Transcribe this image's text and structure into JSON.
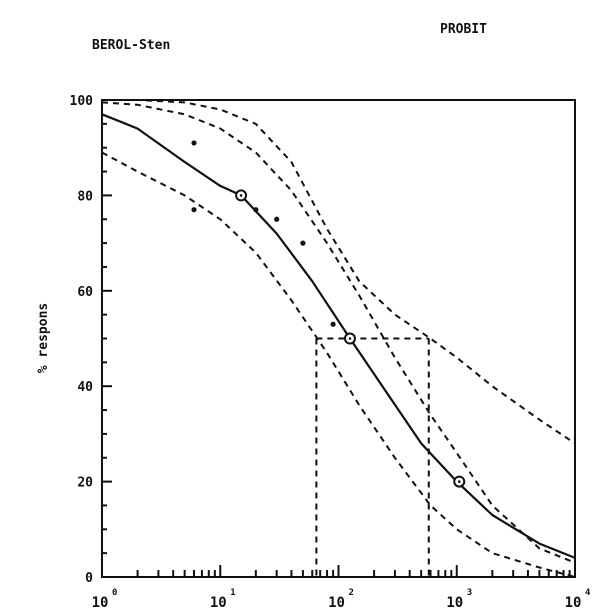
{
  "chart_data": {
    "type": "line",
    "method_label": "PROBIT",
    "subject_label": "BEROL-Sten",
    "ylabel": "% respons",
    "xscale": "log",
    "xlim": [
      1,
      10000
    ],
    "ylim": [
      0,
      100
    ],
    "x_ticks": [
      {
        "value": 1,
        "base": "10",
        "exp": "0"
      },
      {
        "value": 10,
        "base": "10",
        "exp": "1"
      },
      {
        "value": 100,
        "base": "10",
        "exp": "2"
      },
      {
        "value": 1000,
        "base": "10",
        "exp": "3"
      },
      {
        "value": 10000,
        "base": "10",
        "exp": "4"
      }
    ],
    "y_ticks": [
      0,
      20,
      40,
      60,
      80,
      100
    ],
    "y_tick_labels": [
      "0",
      "20",
      "40",
      "60",
      "80",
      "100"
    ],
    "grid": false,
    "series": [
      {
        "style": "solid",
        "x": [
          1,
          2,
          5,
          10,
          15,
          30,
          60,
          125,
          250,
          500,
          1000,
          2000,
          5000,
          10000
        ],
        "y": [
          97,
          94,
          87,
          82,
          80,
          72,
          62,
          50,
          39,
          28,
          20,
          13,
          7,
          4
        ]
      },
      {
        "style": "dashed",
        "x": [
          1,
          2,
          5,
          10,
          20,
          40,
          80,
          150,
          300,
          600,
          1000,
          2000,
          5000,
          10000
        ],
        "y": [
          99.5,
          99,
          97,
          94,
          89,
          81,
          70,
          59,
          46,
          34,
          26,
          15,
          6,
          3
        ]
      },
      {
        "style": "dashed",
        "x": [
          1,
          2,
          5,
          10,
          20,
          40,
          80,
          150,
          300,
          600,
          1000,
          2000,
          5000,
          10000
        ],
        "y": [
          89,
          85,
          80,
          75,
          68,
          58,
          47,
          36,
          25,
          15,
          10,
          5,
          2,
          0
        ]
      },
      {
        "style": "dashed",
        "x": [
          1,
          2,
          5,
          10,
          20,
          40,
          80,
          150,
          300,
          600,
          1000,
          2000,
          5000,
          10000
        ],
        "y": [
          100,
          100,
          99.5,
          98,
          95,
          87,
          73,
          62,
          55,
          50,
          46,
          40,
          33,
          28
        ]
      }
    ],
    "markers": [
      {
        "x": 15,
        "y": 80
      },
      {
        "x": 125,
        "y": 50
      },
      {
        "x": 1050,
        "y": 20
      }
    ],
    "points": [
      {
        "x": 6,
        "y": 91
      },
      {
        "x": 6,
        "y": 77
      },
      {
        "x": 20,
        "y": 77
      },
      {
        "x": 30,
        "y": 75
      },
      {
        "x": 50,
        "y": 70
      },
      {
        "x": 90,
        "y": 53
      }
    ],
    "reference_lines": {
      "y": 50,
      "x_low": 65,
      "x_high": 580
    }
  }
}
